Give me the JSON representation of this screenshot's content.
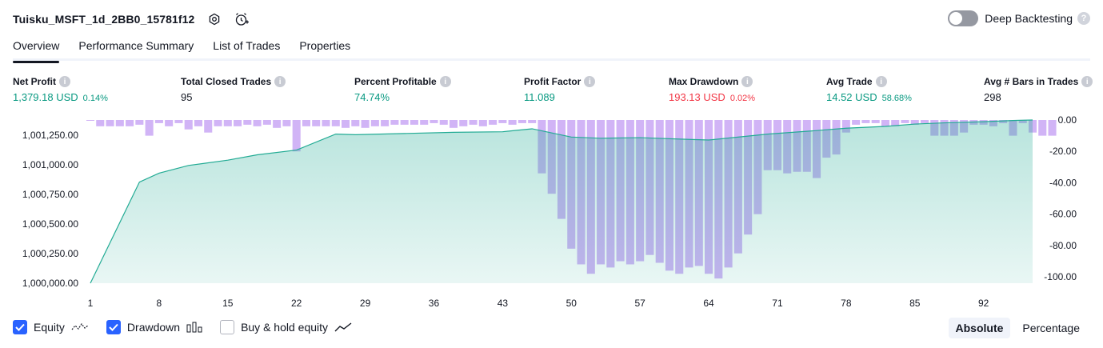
{
  "header": {
    "strategy_name": "Tuisku_MSFT_1d_2BB0_15781f12",
    "settings_icon": "settings-gear-icon",
    "add_alert_icon": "alarm-clock-plus-icon"
  },
  "deep_backtesting": {
    "label": "Deep Backtesting",
    "enabled": false,
    "help": "?"
  },
  "tabs": [
    {
      "label": "Overview",
      "active": true
    },
    {
      "label": "Performance Summary",
      "active": false
    },
    {
      "label": "List of Trades",
      "active": false
    },
    {
      "label": "Properties",
      "active": false
    }
  ],
  "metrics": {
    "net_profit": {
      "label": "Net Profit",
      "value": "1,379.18 USD",
      "pct": "0.14%"
    },
    "total_closed_trades": {
      "label": "Total Closed Trades",
      "value": "95"
    },
    "percent_profitable": {
      "label": "Percent Profitable",
      "value": "74.74%"
    },
    "profit_factor": {
      "label": "Profit Factor",
      "value": "11.089"
    },
    "max_drawdown": {
      "label": "Max Drawdown",
      "value": "193.13 USD",
      "pct": "0.02%"
    },
    "avg_trade": {
      "label": "Avg Trade",
      "value": "14.52 USD",
      "pct": "58.68%"
    },
    "avg_bars": {
      "label": "Avg # Bars in Trades",
      "value": "298"
    },
    "info_glyph": "i"
  },
  "colors": {
    "green": "#089981",
    "red": "#f23645",
    "equity_line": "#22ab94",
    "drawdown_bar": "#c9a7f5",
    "accent": "#2962ff"
  },
  "chart_data": {
    "type": "area",
    "x_ticks": [
      "1",
      "8",
      "15",
      "22",
      "29",
      "36",
      "43",
      "50",
      "57",
      "64",
      "71",
      "78",
      "85",
      "92"
    ],
    "xlim": [
      1,
      97
    ],
    "left_axis": {
      "ticks": [
        "1,000,000.00",
        "1,000,250.00",
        "1,000,500.00",
        "1,000,750.00",
        "1,001,000.00",
        "1,001,250.00"
      ],
      "ylim": [
        1000000,
        1001379.18
      ]
    },
    "right_axis": {
      "ticks": [
        "0.00",
        "-20.00",
        "-40.00",
        "-60.00",
        "-80.00",
        "-100.00"
      ],
      "ylim": [
        -104,
        0
      ]
    },
    "series": [
      {
        "name": "Equity",
        "type": "area",
        "x": [
          1,
          6,
          8,
          11,
          15,
          18,
          22,
          26,
          28,
          33,
          38,
          43,
          46,
          50,
          53,
          57,
          62,
          64,
          70,
          75,
          78,
          82,
          85,
          88,
          92,
          95,
          97
        ],
        "values": [
          1000000,
          1000855,
          1000930,
          1000995,
          1001040,
          1001085,
          1001125,
          1001260,
          1001255,
          1001265,
          1001275,
          1001280,
          1001305,
          1001235,
          1001225,
          1001230,
          1001215,
          1001210,
          1001260,
          1001290,
          1001310,
          1001325,
          1001345,
          1001355,
          1001365,
          1001375,
          1001379.18
        ]
      },
      {
        "name": "Drawdown",
        "type": "bar",
        "values": [
          0,
          -4,
          -4,
          -4,
          -4,
          -3,
          -10,
          -2,
          -4,
          -2,
          -6,
          -4,
          -8,
          -4,
          -4,
          -4,
          -3,
          -4,
          -3,
          -5,
          -4,
          -20,
          -4,
          -4,
          -4,
          -4,
          -5,
          -4,
          -5,
          -4,
          -4,
          -3,
          -3,
          -3,
          -3,
          -2,
          -3,
          -5,
          -4,
          -3,
          -4,
          -3,
          -2,
          -3,
          -2,
          -2,
          -34,
          -47,
          -63,
          -82,
          -92,
          -98,
          -92,
          -94,
          -90,
          -92,
          -90,
          -86,
          -91,
          -96,
          -98,
          -94,
          -93,
          -98,
          -101,
          -94,
          -85,
          -73,
          -60,
          -32,
          -32,
          -34,
          -33,
          -33,
          -37,
          -24,
          -22,
          -8,
          -3,
          -2,
          -2,
          -4,
          -4,
          -2,
          -3,
          -2,
          -10,
          -10,
          -10,
          -8,
          -3,
          -3,
          -4,
          -2,
          -10,
          -2,
          -8,
          -10,
          -10
        ]
      },
      {
        "name": "Buy & hold equity",
        "type": "line",
        "visible": false
      }
    ]
  },
  "legend": {
    "equity": {
      "label": "Equity",
      "checked": true
    },
    "drawdown": {
      "label": "Drawdown",
      "checked": true
    },
    "buy_hold": {
      "label": "Buy & hold equity",
      "checked": false
    }
  },
  "mode_buttons": [
    {
      "label": "Absolute",
      "active": true
    },
    {
      "label": "Percentage",
      "active": false
    }
  ]
}
